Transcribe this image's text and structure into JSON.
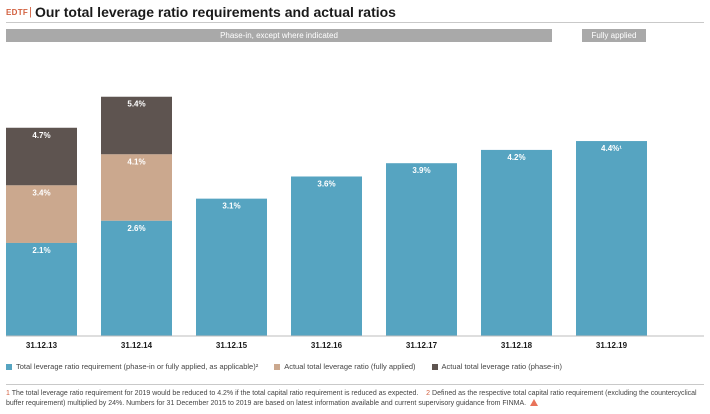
{
  "header": {
    "tag": "EDTF",
    "separator": "|",
    "title": "Our total leverage ratio requirements and actual ratios"
  },
  "bands": {
    "phase_in": "Phase-in, except where indicated",
    "fully_applied": "Fully applied"
  },
  "colors": {
    "requirement": "#56a4c1",
    "fully_applied": "#cba88e",
    "phase_in": "#5e5450",
    "axis": "#bdbdbd"
  },
  "chart_data": {
    "type": "bar",
    "categories": [
      "31.12.13",
      "31.12.14",
      "31.12.15",
      "31.12.16",
      "31.12.17",
      "31.12.18",
      "31.12.19"
    ],
    "ylim": [
      0,
      6.5
    ],
    "series": [
      {
        "name": "Total leverage ratio requirement (phase-in or fully applied, as applicable)²",
        "values": [
          2.1,
          2.6,
          3.1,
          3.6,
          3.9,
          4.2,
          4.4
        ]
      },
      {
        "name": "Actual total leverage ratio (fully applied)",
        "values": [
          3.4,
          4.1,
          null,
          null,
          null,
          null,
          null
        ]
      },
      {
        "name": "Actual total leverage ratio (phase-in)",
        "values": [
          4.7,
          5.4,
          null,
          null,
          null,
          null,
          null
        ]
      }
    ],
    "labels": {
      "requirement": [
        "2.1%",
        "2.6%",
        "3.1%",
        "3.6%",
        "3.9%",
        "4.2%",
        "4.4%¹"
      ],
      "fully_applied": [
        "3.4%",
        "4.1%",
        "",
        "",
        "",
        "",
        ""
      ],
      "phase_in": [
        "4.7%",
        "5.4%",
        "",
        "",
        "",
        "",
        ""
      ]
    }
  },
  "legend": [
    {
      "label": "Total leverage ratio requirement (phase-in or fully applied, as applicable)²"
    },
    {
      "label": "Actual total leverage ratio (fully applied)"
    },
    {
      "label": "Actual total leverage ratio (phase-in)"
    }
  ],
  "footnotes": {
    "n1_marker": "1",
    "n1_text": "The total leverage ratio requirement for 2019 would be reduced to 4.2% if the total capital ratio requirement is reduced as expected.",
    "n2_marker": "2",
    "n2_text": "Defined as the respective total capital ratio requirement (excluding the countercyclical buffer requirement) multiplied by 24%. Numbers for 31 December 2015 to 2019 are based on latest information available and current supervisory guidance from FINMA."
  }
}
